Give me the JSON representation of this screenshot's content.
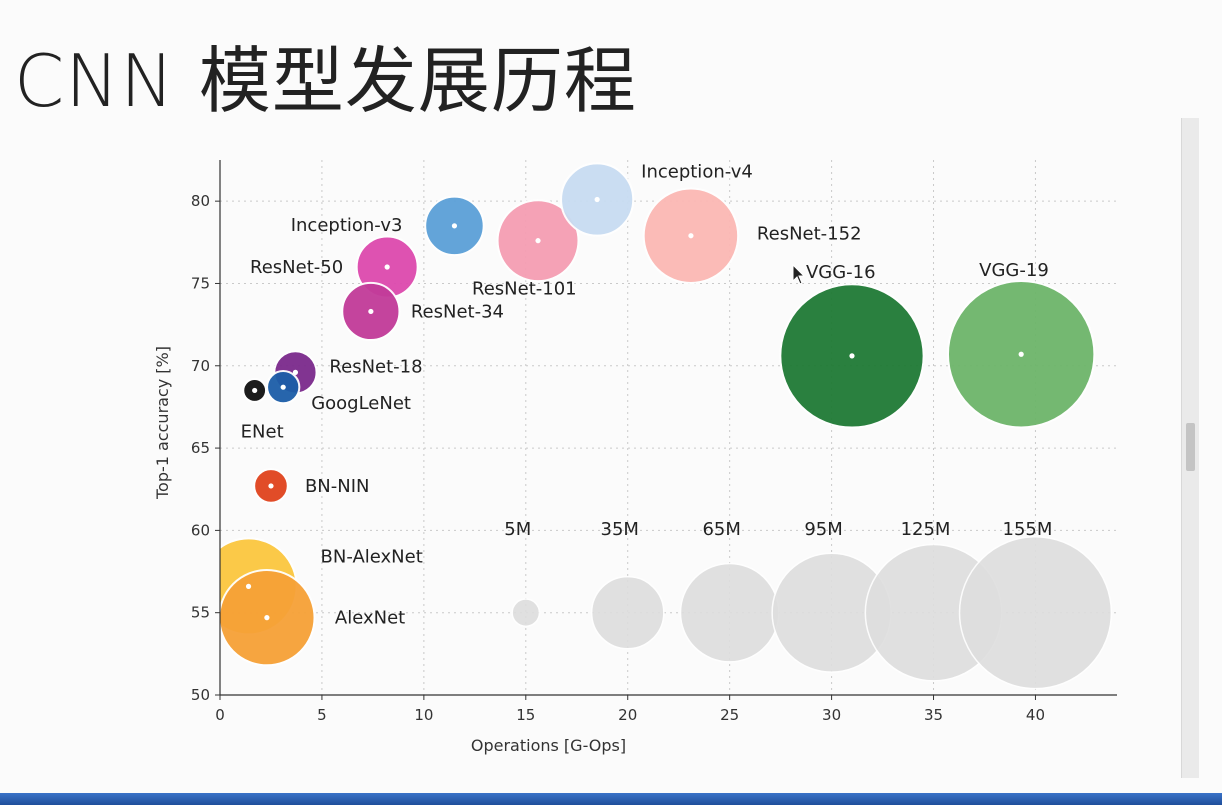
{
  "slide": {
    "title": "CNN 模型发展历程"
  },
  "chart_data": {
    "type": "scatter",
    "subtype": "bubble",
    "xlabel": "Operations [G-Ops]",
    "ylabel": "Top-1 accuracy [%]",
    "xlim": [
      0,
      44
    ],
    "ylim": [
      50,
      82.5
    ],
    "xticks": [
      0,
      5,
      10,
      15,
      20,
      25,
      30,
      35,
      40
    ],
    "yticks": [
      50,
      55,
      60,
      65,
      70,
      75,
      80
    ],
    "grid": true,
    "points": [
      {
        "name": "AlexNet",
        "x": 2.3,
        "y": 54.7,
        "params_m": 61,
        "color": "#f6a137"
      },
      {
        "name": "BN-AlexNet",
        "x": 1.4,
        "y": 56.6,
        "params_m": 62,
        "color": "#fcc73f"
      },
      {
        "name": "BN-NIN",
        "x": 2.5,
        "y": 62.7,
        "params_m": 7.6,
        "color": "#e0431d"
      },
      {
        "name": "ENet",
        "x": 1.7,
        "y": 68.5,
        "params_m": 3.5,
        "color": "#111111"
      },
      {
        "name": "GoogLeNet",
        "x": 3.1,
        "y": 68.7,
        "params_m": 7,
        "color": "#1c5ea8"
      },
      {
        "name": "ResNet-18",
        "x": 3.7,
        "y": 69.6,
        "params_m": 12,
        "color": "#7b2a8c"
      },
      {
        "name": "ResNet-34",
        "x": 7.4,
        "y": 73.3,
        "params_m": 22,
        "color": "#c23b99"
      },
      {
        "name": "ResNet-50",
        "x": 8.2,
        "y": 76.0,
        "params_m": 25,
        "color": "#dd4aae"
      },
      {
        "name": "Inception-v3",
        "x": 11.5,
        "y": 78.5,
        "params_m": 23,
        "color": "#5ba0d8"
      },
      {
        "name": "ResNet-101",
        "x": 15.6,
        "y": 77.6,
        "params_m": 44,
        "color": "#f59eb3"
      },
      {
        "name": "Inception-v4",
        "x": 18.5,
        "y": 80.1,
        "params_m": 35,
        "color": "#c8dcf2"
      },
      {
        "name": "ResNet-152",
        "x": 23.1,
        "y": 77.9,
        "params_m": 60,
        "color": "#fcb8b4"
      },
      {
        "name": "VGG-16",
        "x": 31.0,
        "y": 70.6,
        "params_m": 138,
        "color": "#1f7a35"
      },
      {
        "name": "VGG-19",
        "x": 39.3,
        "y": 70.7,
        "params_m": 144,
        "color": "#6db56a"
      }
    ],
    "size_legend": [
      {
        "label": "5M",
        "x": 15.0,
        "params_m": 5
      },
      {
        "label": "35M",
        "x": 20.0,
        "params_m": 35
      },
      {
        "label": "65M",
        "x": 25.0,
        "params_m": 65
      },
      {
        "label": "95M",
        "x": 30.0,
        "params_m": 95
      },
      {
        "label": "125M",
        "x": 35.0,
        "params_m": 125
      },
      {
        "label": "155M",
        "x": 40.0,
        "params_m": 155
      }
    ],
    "size_legend_y": 55,
    "size_legend_color": "#dedede"
  }
}
